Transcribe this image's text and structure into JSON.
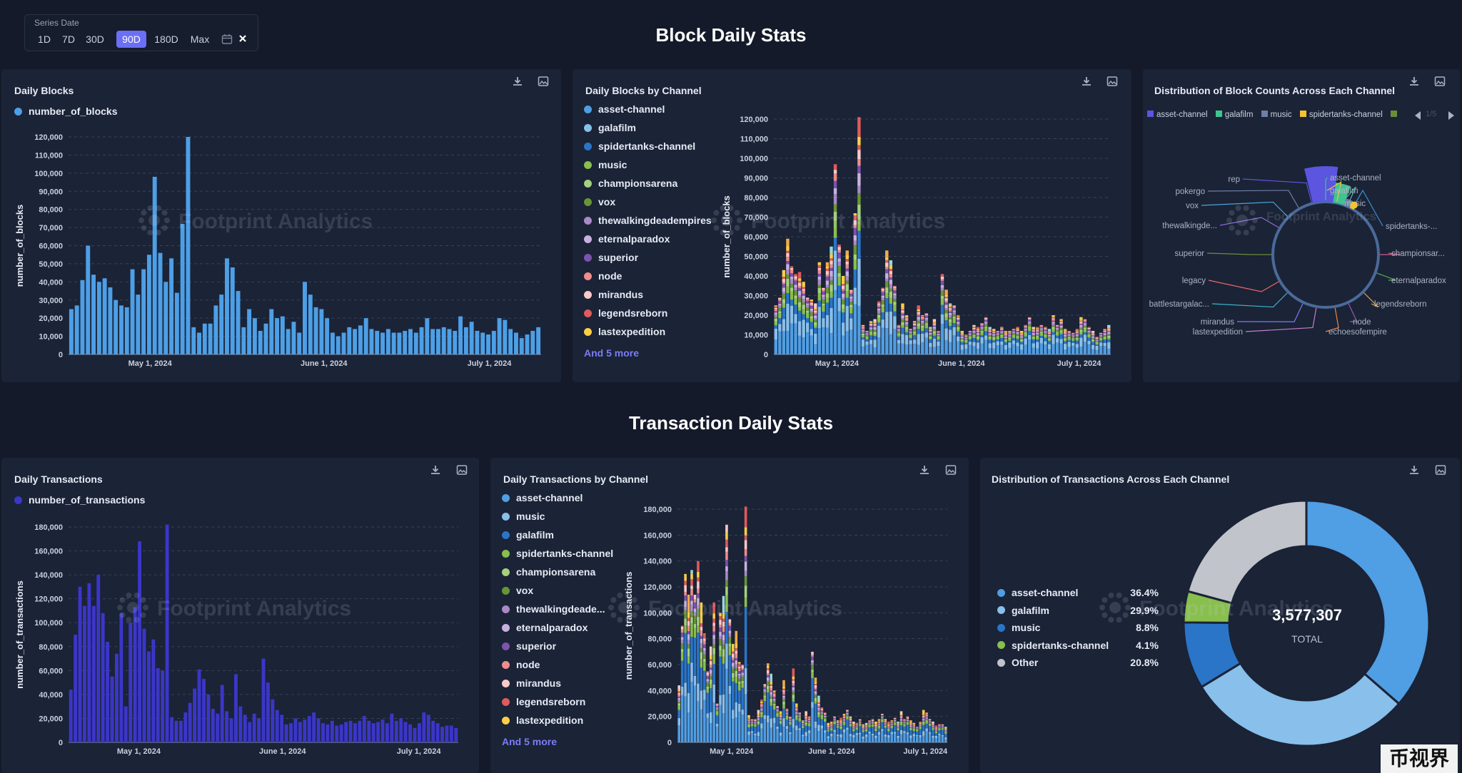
{
  "date_filter": {
    "label": "Series Date",
    "options": [
      "1D",
      "7D",
      "30D",
      "90D",
      "180D",
      "Max"
    ],
    "selected": "90D",
    "calendar_icon": "calendar-icon",
    "clear_icon": "close-icon"
  },
  "sections": {
    "block_title": "Block Daily Stats",
    "tx_title": "Transaction Daily Stats"
  },
  "watermark": "Footprint Analytics",
  "corner_badge": "币视界",
  "colors": {
    "page_bg": "#141a29",
    "card_bg": "#1b2336",
    "accent": "#6b6ff3",
    "daily_blocks_bar": "#4d9fe6",
    "daily_tx_bar": "#3b36c8",
    "channel_palette": [
      "#509ee3",
      "#88bfeb",
      "#2a75c8",
      "#88bf4d",
      "#a5d07e",
      "#689636",
      "#a989c5",
      "#c7b1dc",
      "#7c53ad",
      "#ef8c8c",
      "#f9c9c9",
      "#e05b5b",
      "#f9cf48",
      "#f2a94e",
      "#98d9d9"
    ]
  },
  "toolbar_icons": [
    "download-icon",
    "image-export-icon"
  ],
  "daily_blocks": {
    "title": "Daily Blocks",
    "legend": "number_of_blocks",
    "ylabel": "number_of_blocks",
    "yticks": [
      "0",
      "10,000",
      "20,000",
      "30,000",
      "40,000",
      "50,000",
      "60,000",
      "70,000",
      "80,000",
      "90,000",
      "100,000",
      "110,000",
      "120,000"
    ],
    "xticks": [
      "May 1, 2024",
      "June 1, 2024",
      "July 1, 2024"
    ]
  },
  "blocks_by_channel": {
    "title": "Daily Blocks by Channel",
    "legend": [
      "asset-channel",
      "galafilm",
      "spidertanks-channel",
      "music",
      "championsarena",
      "vox",
      "thewalkingdeadempires",
      "eternalparadox",
      "superior",
      "node",
      "mirandus",
      "legendsreborn",
      "lastexpedition"
    ],
    "more": "And 5 more",
    "ylabel": "number_of_blocks",
    "yticks": [
      "0",
      "10,000",
      "20,000",
      "30,000",
      "40,000",
      "50,000",
      "60,000",
      "70,000",
      "80,000",
      "90,000",
      "100,000",
      "110,000",
      "120,000"
    ],
    "xticks": [
      "May 1, 2024",
      "June 1, 2024",
      "July 1, 2024"
    ]
  },
  "block_distribution": {
    "title": "Distribution of Block Counts Across Each Channel",
    "legend": [
      "asset-channel",
      "galafilm",
      "music",
      "spidertanks-channel"
    ],
    "legend_page": "1/5",
    "prev_icon": "chevron-left-icon",
    "next_icon": "chevron-right-icon",
    "labels": [
      "rep",
      "asset-channel",
      "pokergo",
      "galafilm",
      "vox",
      "music",
      "thewalkingde...",
      "spidertanks-...",
      "superior",
      "championsar...",
      "legacy",
      "eternalparadox",
      "battlestargalac...",
      "legendsreborn",
      "mirandus",
      "node",
      "lastexpedition",
      "echoesofempire"
    ]
  },
  "daily_transactions": {
    "title": "Daily Transactions",
    "legend": "number_of_transactions",
    "ylabel": "number_of_transactions",
    "yticks": [
      "0",
      "20,000",
      "40,000",
      "60,000",
      "80,000",
      "100,000",
      "120,000",
      "140,000",
      "160,000",
      "180,000"
    ],
    "xticks": [
      "May 1, 2024",
      "June 1, 2024",
      "July 1, 2024"
    ]
  },
  "tx_by_channel": {
    "title": "Daily Transactions by Channel",
    "legend": [
      "asset-channel",
      "music",
      "galafilm",
      "spidertanks-channel",
      "championsarena",
      "vox",
      "thewalkingdeade...",
      "eternalparadox",
      "superior",
      "node",
      "mirandus",
      "legendsreborn",
      "lastexpedition"
    ],
    "more": "And 5 more",
    "ylabel": "number_of_transactions",
    "yticks": [
      "0",
      "20,000",
      "40,000",
      "60,000",
      "80,000",
      "100,000",
      "120,000",
      "140,000",
      "160,000",
      "180,000"
    ],
    "xticks": [
      "May 1, 2024",
      "June 1, 2024",
      "July 1, 2024"
    ]
  },
  "tx_distribution": {
    "title": "Distribution of Transactions Across Each Channel",
    "legend": [
      {
        "name": "asset-channel",
        "pct": "36.4%"
      },
      {
        "name": "galafilm",
        "pct": "29.9%"
      },
      {
        "name": "music",
        "pct": "8.8%"
      },
      {
        "name": "spidertanks-channel",
        "pct": "4.1%"
      },
      {
        "name": "Other",
        "pct": "20.8%"
      }
    ],
    "total_value": "3,577,307",
    "total_label": "TOTAL"
  },
  "chart_data": [
    {
      "type": "bar",
      "title": "Daily Blocks",
      "ylabel": "number_of_blocks",
      "ylim": [
        0,
        120000
      ],
      "x_range": [
        "2024-04-20",
        "2024-07-20"
      ],
      "series": [
        {
          "name": "number_of_blocks",
          "values": [
            25000,
            27000,
            41000,
            60000,
            44000,
            40000,
            42000,
            37000,
            30000,
            27000,
            26000,
            47000,
            33000,
            47000,
            55000,
            98000,
            56000,
            40000,
            53000,
            34000,
            72000,
            120000,
            15000,
            12000,
            17000,
            17000,
            27000,
            33000,
            53000,
            48000,
            35000,
            15000,
            25000,
            20000,
            13000,
            17000,
            25000,
            20000,
            21000,
            14000,
            18000,
            12000,
            40000,
            33000,
            26000,
            25000,
            20000,
            12000,
            10000,
            12000,
            15000,
            14000,
            16000,
            20000,
            14000,
            13000,
            12000,
            14000,
            12000,
            12000,
            13000,
            14000,
            12000,
            15000,
            20000,
            14000,
            14000,
            15000,
            14000,
            13000,
            21000,
            15000,
            18000,
            13000,
            12000,
            11000,
            13000,
            20000,
            19000,
            14000,
            12000,
            9000,
            11000,
            13000,
            15000
          ]
        }
      ]
    },
    {
      "type": "bar",
      "title": "Daily Blocks by Channel",
      "ylabel": "number_of_blocks",
      "ylim": [
        0,
        120000
      ],
      "x_range": [
        "2024-04-20",
        "2024-07-20"
      ],
      "stacked": true,
      "series_names": [
        "asset-channel",
        "galafilm",
        "spidertanks-channel",
        "music",
        "championsarena",
        "vox",
        "thewalkingdeadempires",
        "eternalparadox",
        "superior",
        "node",
        "mirandus",
        "legendsreborn",
        "lastexpedition"
      ],
      "totals": [
        25000,
        29000,
        43000,
        59000,
        45000,
        41000,
        42000,
        37000,
        29000,
        28000,
        26000,
        47000,
        34000,
        47000,
        55000,
        97000,
        56000,
        40000,
        53000,
        33000,
        72000,
        121000,
        15000,
        12000,
        17000,
        18000,
        27000,
        34000,
        53000,
        48000,
        35000,
        15000,
        26000,
        20000,
        13000,
        17000,
        25000,
        20000,
        21000,
        14000,
        18000,
        12000,
        41000,
        33000,
        26000,
        25000,
        20000,
        12000,
        10000,
        12000,
        15000,
        14000,
        16000,
        19000,
        14000,
        13000,
        12000,
        14000,
        12000,
        12000,
        13000,
        14000,
        12000,
        15000,
        19000,
        14000,
        14000,
        15000,
        14000,
        13000,
        20000,
        15000,
        18000,
        13000,
        12000,
        11000,
        13000,
        19000,
        18000,
        14000,
        12000,
        9000,
        11000,
        13000,
        15000
      ]
    },
    {
      "type": "pie",
      "title": "Distribution of Block Counts Across Each Channel",
      "categories": [
        "asset-channel",
        "galafilm",
        "music",
        "spidertanks-channel",
        "championsarena",
        "eternalparadox",
        "legendsreborn",
        "echoesofempire",
        "node",
        "lastexpedition",
        "mirandus",
        "battlestargalac...",
        "legacy",
        "superior",
        "thewalkingde...",
        "vox",
        "pokergo",
        "rep"
      ],
      "values": [
        38,
        16,
        5,
        2,
        1.2,
        1,
        1,
        1,
        1,
        1,
        1,
        1,
        1,
        1,
        1,
        1,
        1,
        1
      ]
    },
    {
      "type": "bar",
      "title": "Daily Transactions",
      "ylabel": "number_of_transactions",
      "ylim": [
        0,
        180000
      ],
      "x_range": [
        "2024-04-20",
        "2024-07-20"
      ],
      "series": [
        {
          "name": "number_of_transactions",
          "values": [
            44000,
            90000,
            130000,
            114000,
            133000,
            114000,
            140000,
            108000,
            84000,
            55000,
            74000,
            108000,
            30000,
            100000,
            113000,
            168000,
            95000,
            76000,
            86000,
            62000,
            60000,
            182000,
            21000,
            18000,
            18000,
            25000,
            33000,
            45000,
            61000,
            53000,
            40000,
            28000,
            24000,
            48000,
            26000,
            20000,
            57000,
            30000,
            23000,
            17000,
            24000,
            20000,
            70000,
            50000,
            36000,
            27000,
            23000,
            15000,
            16000,
            20000,
            17000,
            19000,
            22000,
            25000,
            20000,
            16000,
            15000,
            18000,
            14000,
            15000,
            17000,
            18000,
            16000,
            18000,
            22000,
            18000,
            16000,
            17000,
            19000,
            16000,
            24000,
            18000,
            20000,
            17000,
            15000,
            12000,
            16000,
            25000,
            23000,
            18000,
            16000,
            13000,
            14000,
            14000,
            12000
          ]
        }
      ]
    },
    {
      "type": "bar",
      "title": "Daily Transactions by Channel",
      "ylabel": "number_of_transactions",
      "ylim": [
        0,
        180000
      ],
      "x_range": [
        "2024-04-20",
        "2024-07-20"
      ],
      "stacked": true,
      "series_names": [
        "asset-channel",
        "music",
        "galafilm",
        "spidertanks-channel",
        "championsarena",
        "vox",
        "thewalkingdeade...",
        "eternalparadox",
        "superior",
        "node",
        "mirandus",
        "legendsreborn",
        "lastexpedition"
      ],
      "totals": [
        44000,
        90000,
        130000,
        114000,
        133000,
        114000,
        140000,
        108000,
        84000,
        55000,
        74000,
        108000,
        30000,
        100000,
        113000,
        168000,
        95000,
        76000,
        86000,
        62000,
        60000,
        182000,
        21000,
        18000,
        18000,
        25000,
        33000,
        45000,
        61000,
        53000,
        40000,
        28000,
        24000,
        48000,
        26000,
        20000,
        57000,
        30000,
        23000,
        17000,
        24000,
        20000,
        70000,
        50000,
        36000,
        27000,
        23000,
        15000,
        16000,
        20000,
        17000,
        19000,
        22000,
        25000,
        20000,
        16000,
        15000,
        18000,
        14000,
        15000,
        17000,
        18000,
        16000,
        18000,
        22000,
        18000,
        16000,
        17000,
        19000,
        16000,
        24000,
        18000,
        20000,
        17000,
        15000,
        12000,
        16000,
        25000,
        23000,
        18000,
        16000,
        13000,
        14000,
        14000,
        12000
      ]
    },
    {
      "type": "pie",
      "title": "Distribution of Transactions Across Each Channel",
      "categories": [
        "asset-channel",
        "galafilm",
        "music",
        "spidertanks-channel",
        "Other"
      ],
      "values": [
        36.4,
        29.9,
        8.8,
        4.1,
        20.8
      ],
      "total": 3577307
    }
  ]
}
